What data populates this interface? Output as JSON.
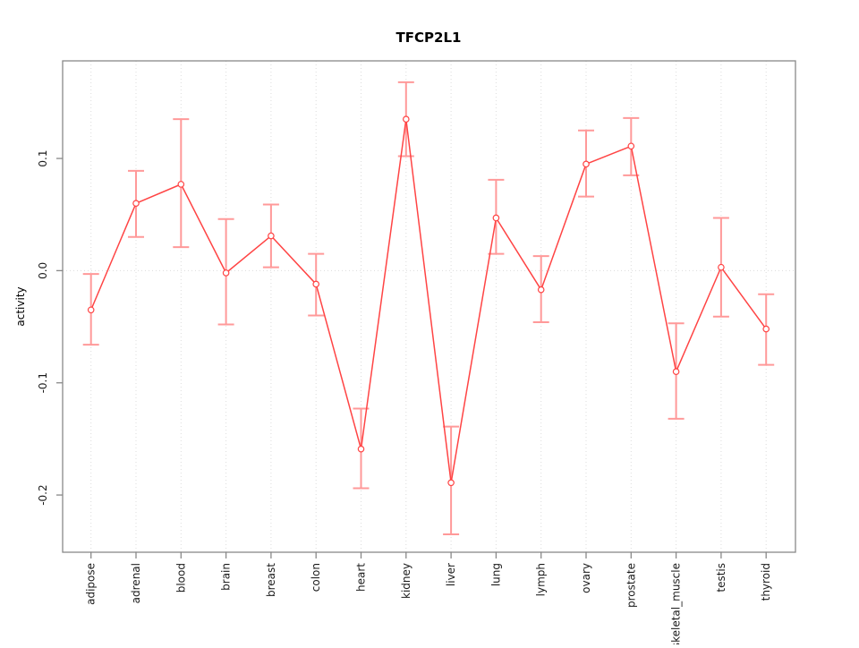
{
  "title": "TFCP2L1",
  "chart_data": {
    "type": "line",
    "title": "TFCP2L1",
    "xlabel": "",
    "ylabel": "activity",
    "categories": [
      "adipose",
      "adrenal",
      "blood",
      "brain",
      "breast",
      "colon",
      "heart",
      "kidney",
      "liver",
      "lung",
      "lymph",
      "ovary",
      "prostate",
      "skeletal_muscle",
      "testis",
      "thyroid"
    ],
    "series": [
      {
        "name": "activity",
        "values": [
          -0.035,
          0.06,
          0.077,
          -0.002,
          0.031,
          -0.012,
          -0.159,
          0.135,
          -0.189,
          0.047,
          -0.017,
          0.095,
          0.111,
          -0.09,
          0.003,
          -0.052
        ],
        "upper": [
          -0.003,
          0.089,
          0.135,
          0.046,
          0.059,
          0.015,
          -0.123,
          0.168,
          -0.139,
          0.081,
          0.013,
          0.125,
          0.136,
          -0.047,
          0.047,
          -0.021
        ],
        "lower": [
          -0.066,
          0.03,
          0.021,
          -0.048,
          0.003,
          -0.04,
          -0.194,
          0.102,
          -0.235,
          0.015,
          -0.046,
          0.066,
          0.085,
          -0.132,
          -0.041,
          -0.084
        ]
      }
    ],
    "yticks": [
      -0.2,
      -0.1,
      0.0,
      0.1
    ],
    "ylim": [
      -0.251,
      0.187
    ],
    "grid": "dotted vertical line at each category; dotted horizontal line at 0",
    "legend_position": "none",
    "marker": "open-circle",
    "colors": {
      "line": "#ff4444",
      "marker_stroke": "#ff4444",
      "marker_fill": "#ffffff",
      "error_bar": "#ff9999",
      "grid": "#dcdcdc",
      "box": "#888888",
      "text": "#000000"
    }
  }
}
